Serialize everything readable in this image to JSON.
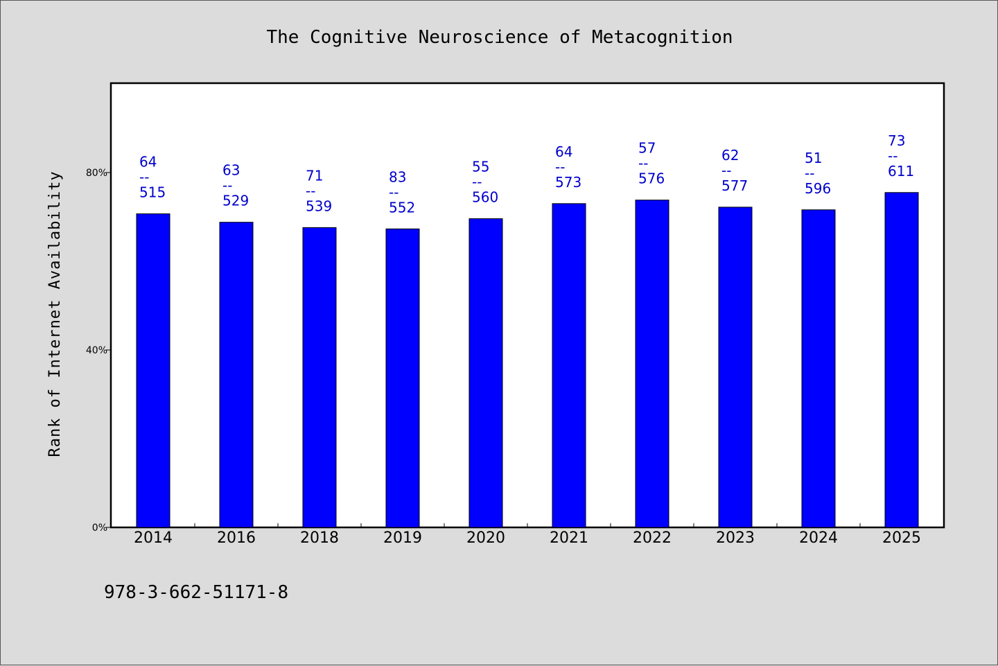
{
  "chart_data": {
    "type": "bar",
    "title": "The Cognitive Neuroscience of Metacognition",
    "xlabel": "",
    "ylabel": "Rank of Internet Availability",
    "categories": [
      "2014",
      "2016",
      "2018",
      "2019",
      "2020",
      "2021",
      "2022",
      "2023",
      "2024",
      "2025"
    ],
    "values": [
      70.7,
      68.8,
      67.6,
      67.3,
      69.6,
      73.0,
      73.8,
      72.2,
      71.6,
      75.5
    ],
    "labels": [
      {
        "top": "64",
        "bottom": "515"
      },
      {
        "top": "63",
        "bottom": "529"
      },
      {
        "top": "71",
        "bottom": "539"
      },
      {
        "top": "83",
        "bottom": "552"
      },
      {
        "top": "55",
        "bottom": "560"
      },
      {
        "top": "64",
        "bottom": "573"
      },
      {
        "top": "57",
        "bottom": "576"
      },
      {
        "top": "62",
        "bottom": "577"
      },
      {
        "top": "51",
        "bottom": "596"
      },
      {
        "top": "73",
        "bottom": "611"
      }
    ],
    "label_separator": "--",
    "ylim": [
      0,
      100
    ],
    "yticks": [
      0,
      40,
      80
    ],
    "ytick_labels": [
      "0%",
      "40%",
      "80%"
    ],
    "bar_color": "#0000ff",
    "label_color": "#0000cc",
    "grid": false,
    "legend": "none"
  },
  "footer": {
    "isbn": "978-3-662-51171-8"
  }
}
